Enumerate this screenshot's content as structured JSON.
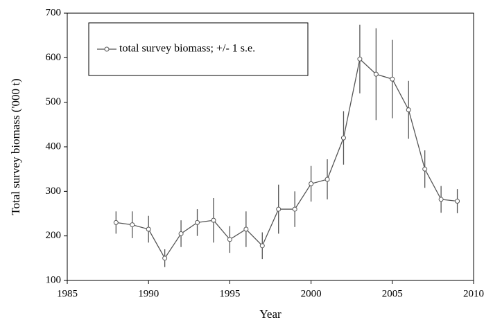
{
  "chart_data": {
    "type": "line",
    "x_label": "Year",
    "y_label": "Total survey biomass ('000 t)",
    "x": [
      1988,
      1989,
      1990,
      1991,
      1992,
      1993,
      1994,
      1995,
      1996,
      1997,
      1998,
      1999,
      2000,
      2001,
      2002,
      2003,
      2004,
      2005,
      2006,
      2007,
      2008,
      2009
    ],
    "series": [
      {
        "name": "total survey biomass; +/- 1 s.e.",
        "color": "#555555",
        "values": [
          230,
          225,
          215,
          150,
          205,
          230,
          235,
          192,
          215,
          178,
          260,
          260,
          317,
          327,
          420,
          597,
          563,
          552,
          483,
          350,
          282,
          278
        ],
        "errors": [
          25,
          30,
          30,
          20,
          30,
          30,
          50,
          30,
          40,
          30,
          55,
          40,
          40,
          45,
          60,
          77,
          103,
          88,
          65,
          42,
          30,
          27
        ]
      }
    ],
    "xlim": [
      1985,
      2010
    ],
    "xticks": [
      1985,
      1990,
      1995,
      2000,
      2005,
      2010
    ],
    "ylim": [
      100,
      700
    ],
    "yticks": [
      100,
      200,
      300,
      400,
      500,
      600,
      700
    ],
    "legend": "upper left"
  }
}
